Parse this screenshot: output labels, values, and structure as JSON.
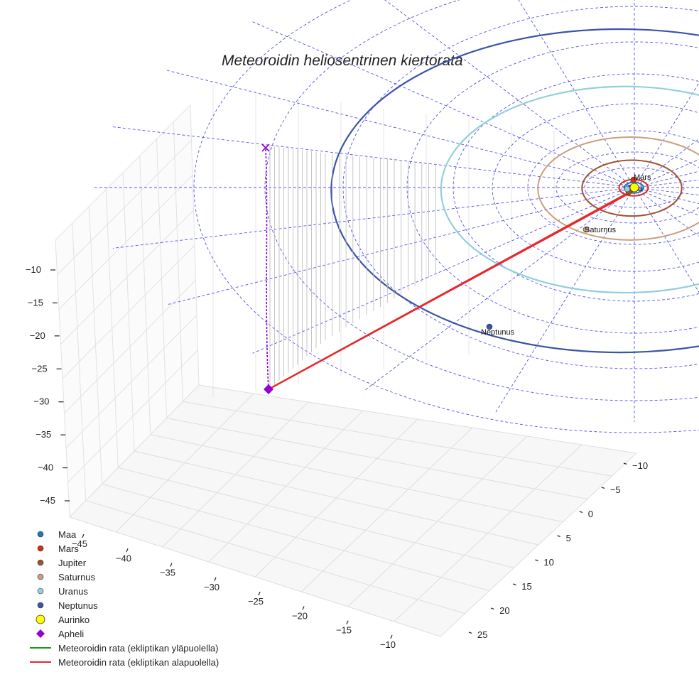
{
  "chart_data": {
    "type": "3d-line",
    "title": "Meteoroidin heliosentrinen kiertorata",
    "axes": {
      "x_ticks": [
        "−45",
        "−40",
        "−35",
        "−30",
        "−25",
        "−20",
        "−15",
        "−10"
      ],
      "y_ticks": [
        "−10",
        "−5",
        "0",
        "5",
        "10",
        "15",
        "20",
        "25"
      ],
      "z_ticks": [
        "−10",
        "−15",
        "−20",
        "−25",
        "−30",
        "−35",
        "−40",
        "−45"
      ]
    },
    "planets": [
      {
        "name": "Maa",
        "orbit_radius_au": 1.0,
        "color": "#1f77b4",
        "label": "Maa"
      },
      {
        "name": "Mars",
        "orbit_radius_au": 1.52,
        "color": "#d62f10",
        "label": "Mars"
      },
      {
        "name": "Jupiter",
        "orbit_radius_au": 5.2,
        "color": "#a0522d",
        "label": ""
      },
      {
        "name": "Saturnus",
        "orbit_radius_au": 9.58,
        "color": "#c8a07e",
        "label": "Saturnus"
      },
      {
        "name": "Uranus",
        "orbit_radius_au": 19.2,
        "color": "#93cfdc",
        "label": ""
      },
      {
        "name": "Neptunus",
        "orbit_radius_au": 30.1,
        "color": "#3b55a6",
        "label": "Neptunus"
      }
    ],
    "sun": {
      "name": "Aurinko",
      "color": "#ffff00"
    },
    "aphelion": {
      "name": "Apheli",
      "color": "#9400d3"
    },
    "meteoroid_paths": [
      {
        "name": "Meteoroidin rata (ekliptikan yläpuolella)",
        "color": "#1a9a1a"
      },
      {
        "name": "Meteoroidin rata (ekliptikan alapuolella)",
        "color": "#e8282a"
      }
    ]
  },
  "legend": [
    {
      "label": "Maa",
      "marker": "circle",
      "color": "#1f77b4"
    },
    {
      "label": "Mars",
      "marker": "circle",
      "color": "#d62f10"
    },
    {
      "label": "Jupiter",
      "marker": "circle",
      "color": "#a0522d"
    },
    {
      "label": "Saturnus",
      "marker": "circle",
      "color": "#c8a07e"
    },
    {
      "label": "Uranus",
      "marker": "circle",
      "color": "#93cfdc"
    },
    {
      "label": "Neptunus",
      "marker": "circle",
      "color": "#3b55a6"
    },
    {
      "label": "Aurinko",
      "marker": "circle-large",
      "color": "#ffff00"
    },
    {
      "label": "Apheli",
      "marker": "diamond",
      "color": "#9400d3"
    },
    {
      "label": "Meteoroidin rata (ekliptikan yläpuolella)",
      "marker": "line",
      "color": "#1a9a1a"
    },
    {
      "label": "Meteoroidin rata (ekliptikan alapuolella)",
      "marker": "line",
      "color": "#e8282a"
    }
  ]
}
